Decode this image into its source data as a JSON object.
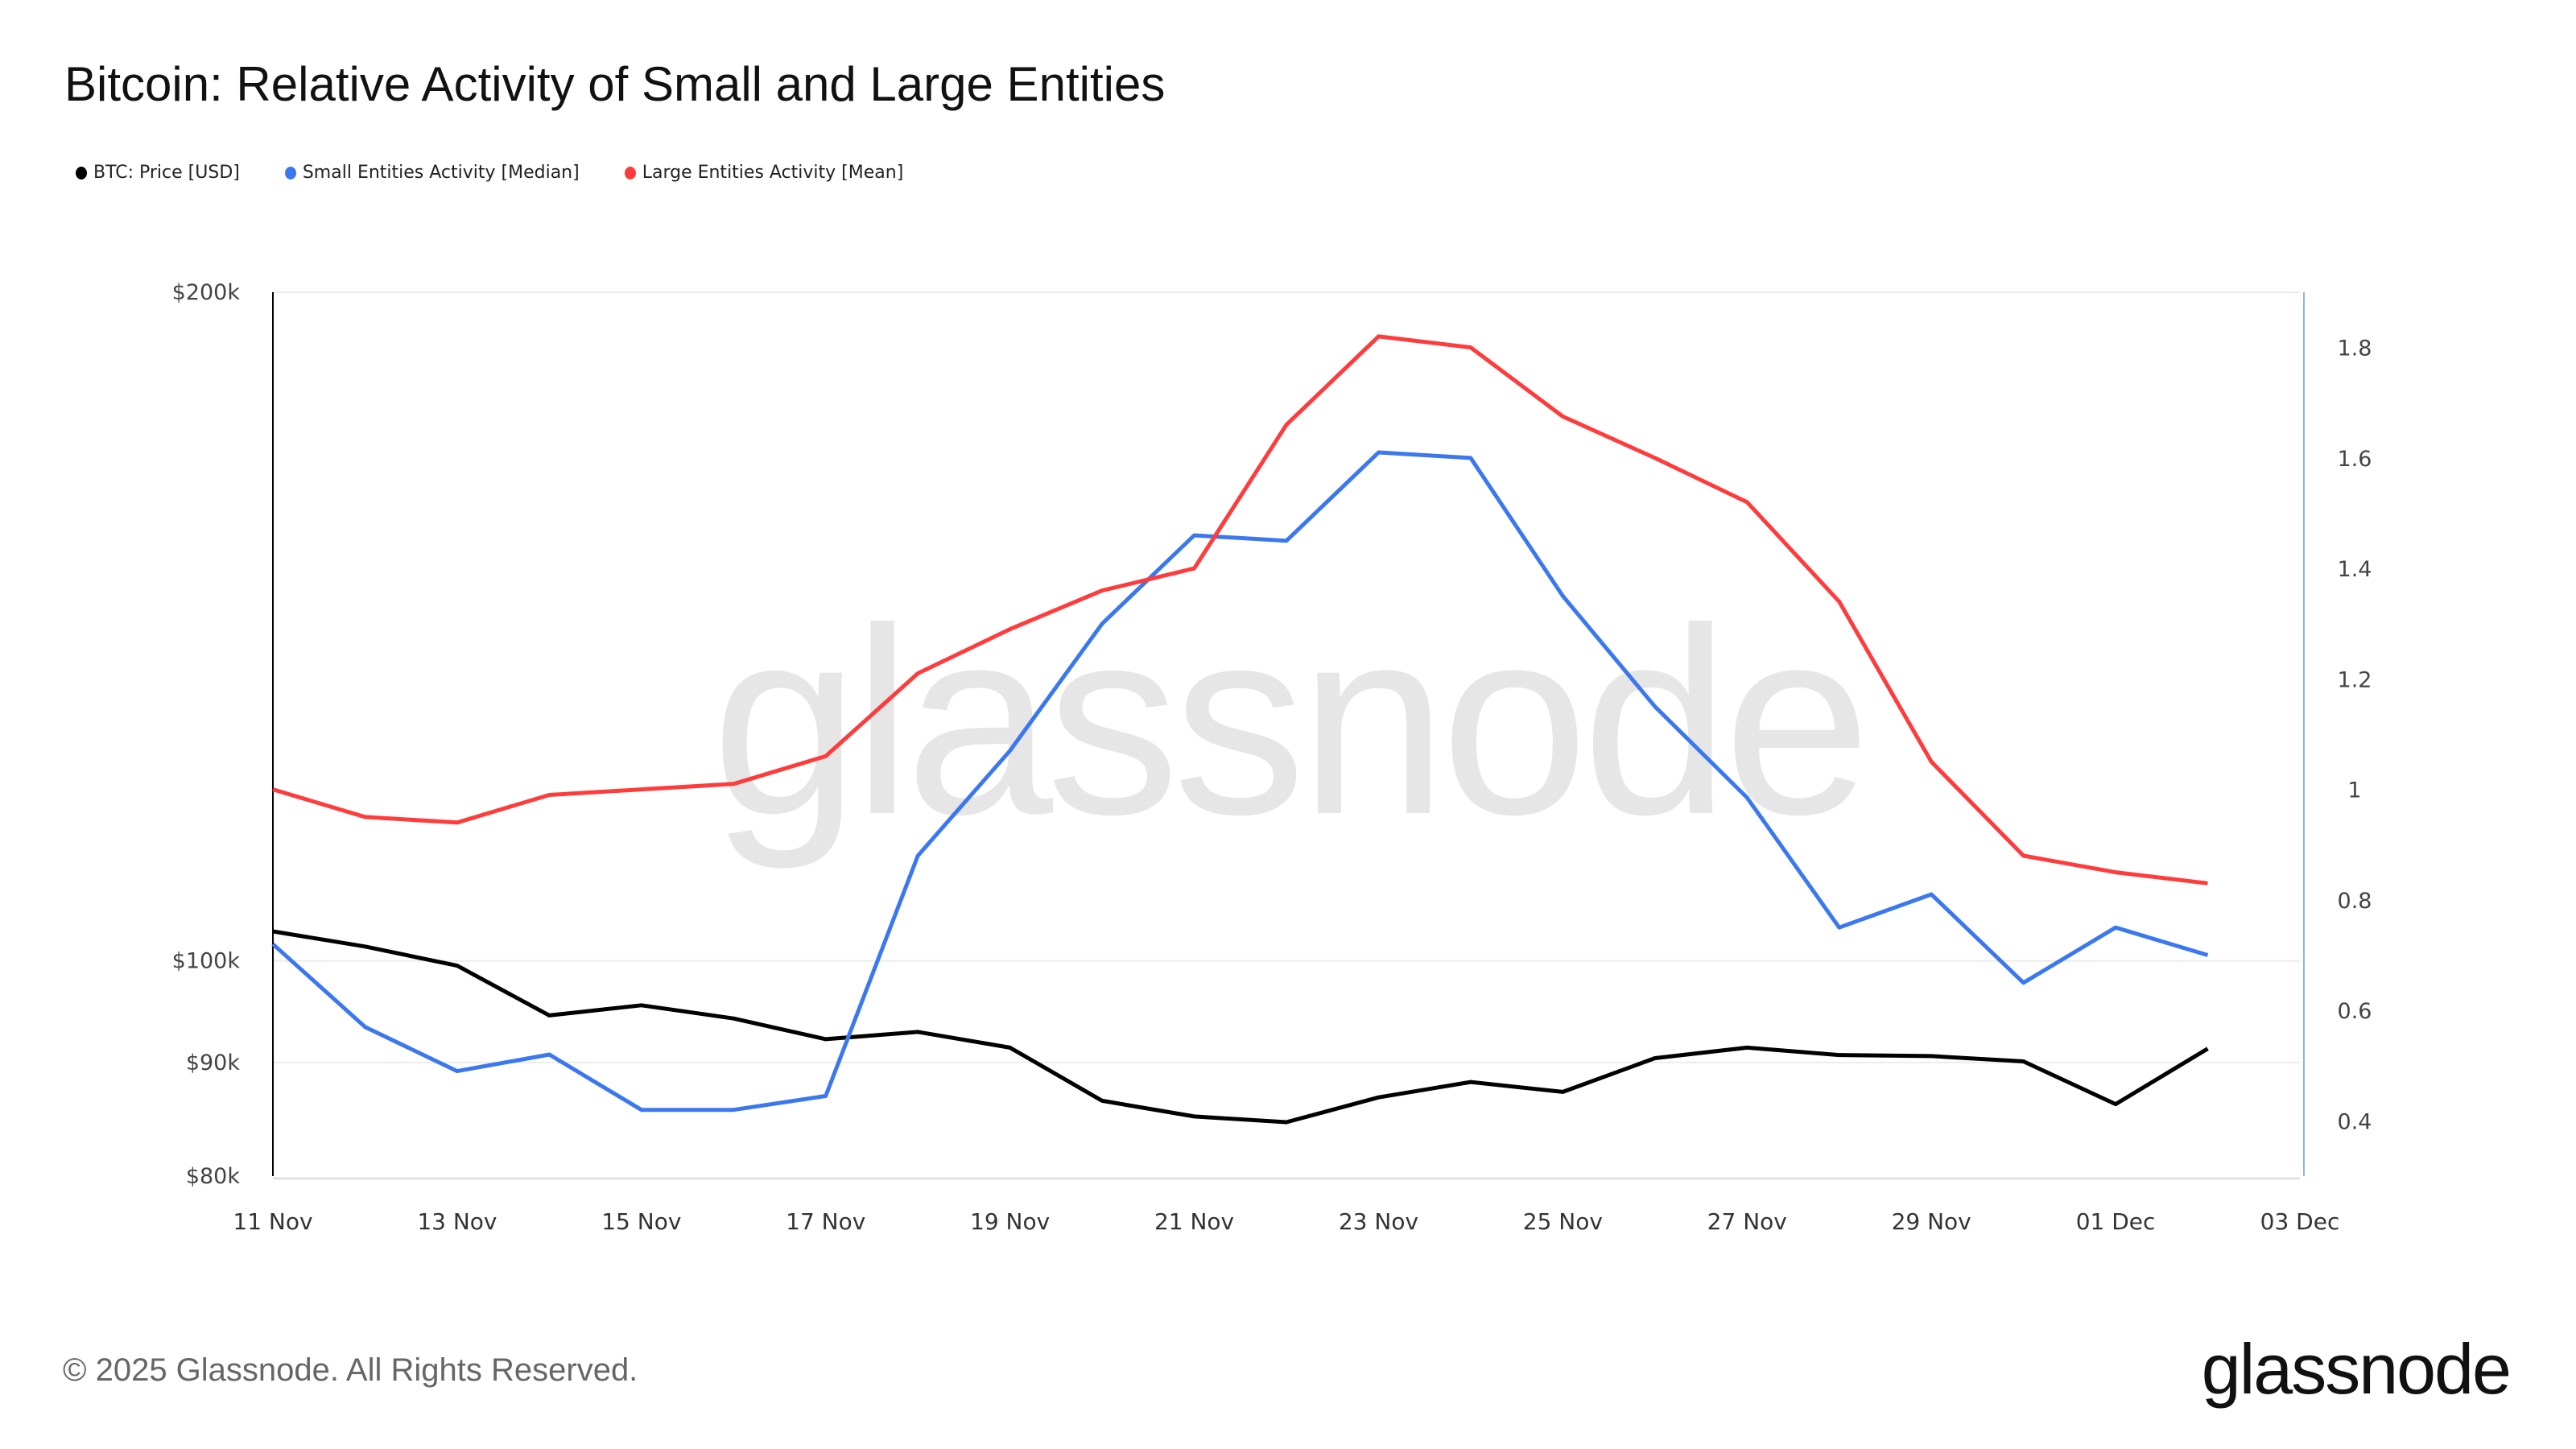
{
  "chart_data": {
    "type": "line",
    "title": "Bitcoin: Relative Activity of Small and Large Entities",
    "x": [
      "11 Nov",
      "12 Nov",
      "13 Nov",
      "14 Nov",
      "15 Nov",
      "16 Nov",
      "17 Nov",
      "18 Nov",
      "19 Nov",
      "20 Nov",
      "21 Nov",
      "22 Nov",
      "23 Nov",
      "24 Nov",
      "25 Nov",
      "26 Nov",
      "27 Nov",
      "28 Nov",
      "29 Nov",
      "30 Nov",
      "01 Dec",
      "02 Dec"
    ],
    "x_tick_labels": [
      "11 Nov",
      "13 Nov",
      "15 Nov",
      "17 Nov",
      "19 Nov",
      "21 Nov",
      "23 Nov",
      "25 Nov",
      "27 Nov",
      "29 Nov",
      "01 Dec",
      "03 Dec"
    ],
    "y_left": {
      "scale": "log",
      "range": [
        80000,
        200000
      ],
      "tick_values": [
        80000,
        90000,
        100000,
        200000
      ],
      "tick_labels": [
        "$80k",
        "$90k",
        "$100k",
        "$200k"
      ]
    },
    "y_right": {
      "scale": "linear",
      "range": [
        0.3,
        1.9
      ],
      "tick_values": [
        0.4,
        0.6,
        0.8,
        1,
        1.2,
        1.4,
        1.6,
        1.8
      ],
      "tick_labels": [
        "0.4",
        "0.6",
        "0.8",
        "1",
        "1.2",
        "1.4",
        "1.6",
        "1.8"
      ]
    },
    "grid": true,
    "legend_placement": "top-left",
    "series": [
      {
        "name": "BTC: Price [USD]",
        "axis": "left",
        "color": "#000000",
        "values": [
          103100,
          101500,
          99500,
          94500,
          95500,
          94200,
          92200,
          92900,
          91400,
          86500,
          85100,
          84600,
          86800,
          88200,
          87300,
          90400,
          91400,
          90700,
          90600,
          90100,
          86200,
          91300
        ]
      },
      {
        "name": "Small Entities Activity [Median]",
        "axis": "right",
        "color": "#3b78f0",
        "values": [
          0.72,
          0.57,
          0.49,
          0.52,
          0.42,
          0.42,
          0.445,
          0.88,
          1.07,
          1.3,
          1.46,
          1.45,
          1.61,
          1.6,
          1.35,
          1.15,
          0.985,
          0.75,
          0.81,
          0.65,
          0.75,
          0.7
        ]
      },
      {
        "name": "Large Entities Activity [Mean]",
        "axis": "right",
        "color": "#ff3b3b",
        "values": [
          1.0,
          0.95,
          0.94,
          0.99,
          1.0,
          1.01,
          1.06,
          1.21,
          1.29,
          1.36,
          1.4,
          1.66,
          1.82,
          1.8,
          1.675,
          1.6,
          1.52,
          1.34,
          1.05,
          0.88,
          0.85,
          0.83
        ]
      }
    ]
  },
  "watermark": "glassnode",
  "footer": "© 2025 Glassnode. All Rights Reserved.",
  "logo": "glassnode"
}
